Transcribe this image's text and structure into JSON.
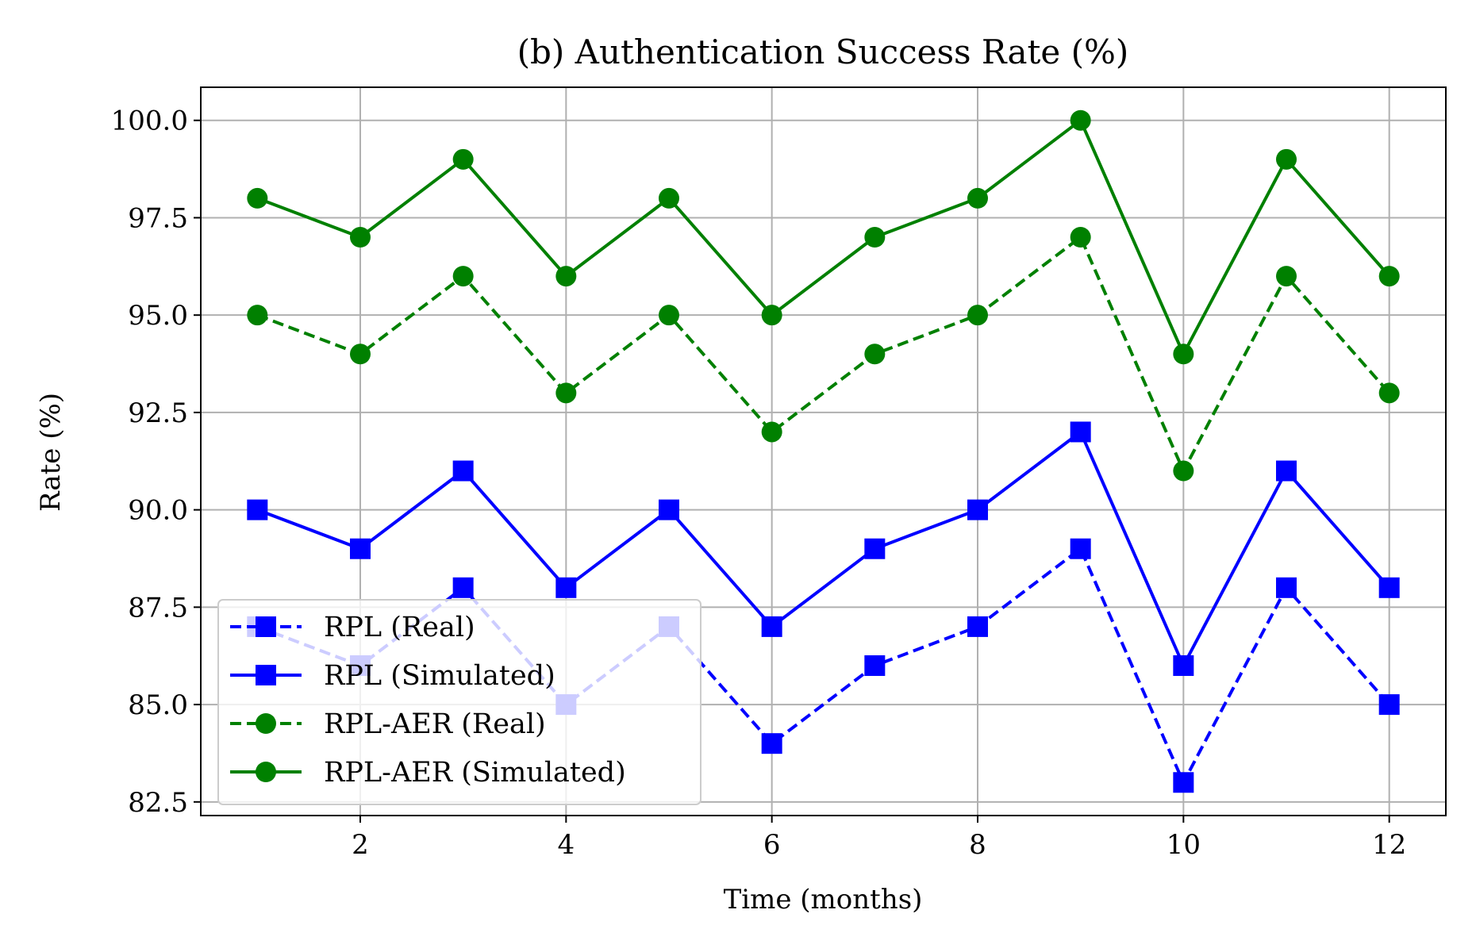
{
  "chart_data": {
    "type": "line",
    "title": "(b) Authentication Success Rate (%)",
    "xlabel": "Time (months)",
    "ylabel": "Rate (%)",
    "x": [
      1,
      2,
      3,
      4,
      5,
      6,
      7,
      8,
      9,
      10,
      11,
      12
    ],
    "xlim": [
      0.45,
      12.55
    ],
    "ylim": [
      82.15,
      100.85
    ],
    "x_ticks": [
      2,
      4,
      6,
      8,
      10,
      12
    ],
    "x_tick_labels": [
      "2",
      "4",
      "6",
      "8",
      "10",
      "12"
    ],
    "y_ticks": [
      82.5,
      85.0,
      87.5,
      90.0,
      92.5,
      95.0,
      97.5,
      100.0
    ],
    "y_tick_labels": [
      "82.5",
      "85.0",
      "87.5",
      "90.0",
      "92.5",
      "95.0",
      "97.5",
      "100.0"
    ],
    "grid": true,
    "legend_position": "lower-left",
    "series": [
      {
        "name": "RPL (Real)",
        "values": [
          87,
          86,
          88,
          85,
          87,
          84,
          86,
          87,
          89,
          83,
          88,
          85
        ],
        "color": "#0000ff",
        "line_style": "dashed",
        "marker": "square"
      },
      {
        "name": "RPL (Simulated)",
        "values": [
          90,
          89,
          91,
          88,
          90,
          87,
          89,
          90,
          92,
          86,
          91,
          88
        ],
        "color": "#0000ff",
        "line_style": "solid",
        "marker": "square"
      },
      {
        "name": "RPL-AER (Real)",
        "values": [
          95,
          94,
          96,
          93,
          95,
          92,
          94,
          95,
          97,
          91,
          96,
          93
        ],
        "color": "#008000",
        "line_style": "dashed",
        "marker": "circle"
      },
      {
        "name": "RPL-AER (Simulated)",
        "values": [
          98,
          97,
          99,
          96,
          98,
          95,
          97,
          98,
          100,
          94,
          99,
          96
        ],
        "color": "#008000",
        "line_style": "solid",
        "marker": "circle"
      }
    ]
  }
}
